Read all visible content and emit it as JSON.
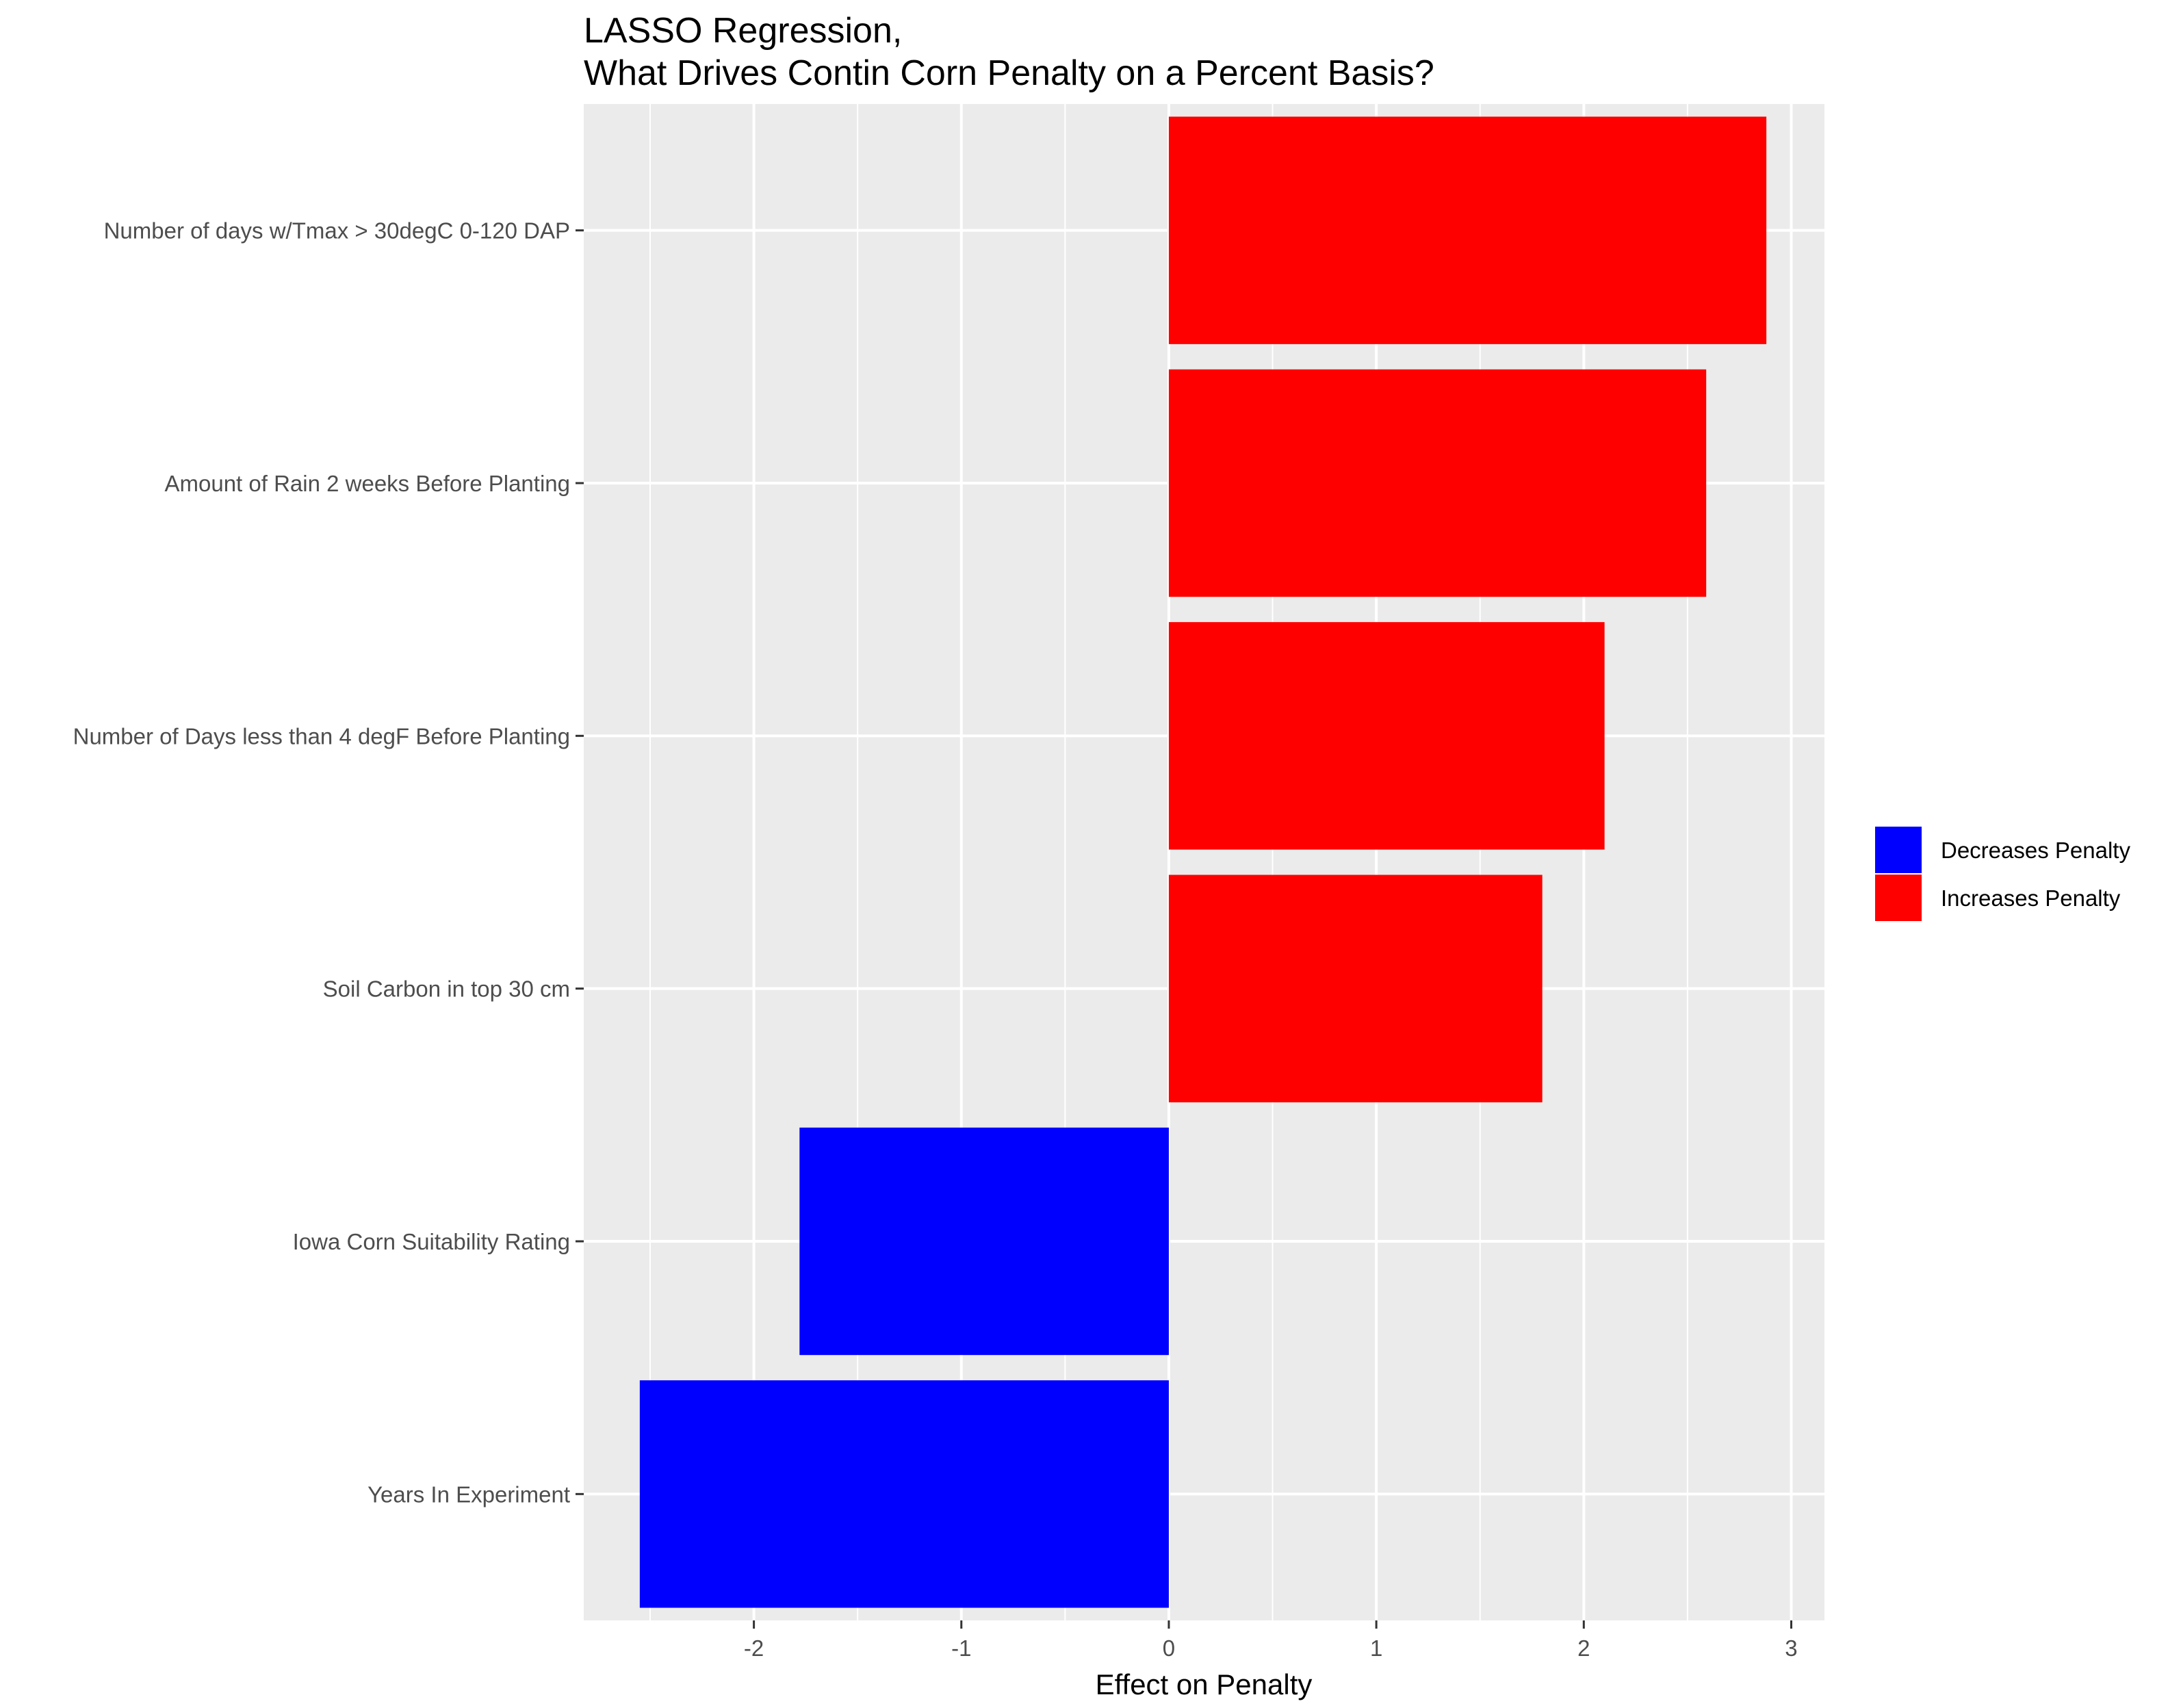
{
  "chart_data": {
    "type": "bar",
    "orientation": "horizontal",
    "title_lines": [
      "LASSO Regression,",
      "What Drives Contin Corn Penalty on a Percent Basis?"
    ],
    "xlabel": "Effect on Penalty",
    "ylabel": "",
    "xlim": [
      -2.82,
      3.16
    ],
    "x_ticks": [
      -2,
      -1,
      0,
      1,
      2,
      3
    ],
    "x_tick_labels": [
      "-2",
      "-1",
      "0",
      "1",
      "2",
      "3"
    ],
    "categories": [
      "Number of days w/Tmax > 30degC 0-120 DAP",
      "Amount of Rain 2 weeks Before Planting",
      "Number of Days less than 4 degF Before Planting",
      "Soil Carbon in top 30 cm",
      "Iowa Corn Suitability Rating",
      "Years In Experiment"
    ],
    "values": [
      2.88,
      2.59,
      2.1,
      1.8,
      -1.78,
      -2.55
    ],
    "groups": [
      "Increases Penalty",
      "Increases Penalty",
      "Increases Penalty",
      "Increases Penalty",
      "Decreases Penalty",
      "Decreases Penalty"
    ],
    "legend": [
      {
        "name": "Decreases Penalty",
        "color": "#0000ff"
      },
      {
        "name": "Increases Penalty",
        "color": "#ff0000"
      }
    ],
    "legend_position": "right",
    "grid": true,
    "panel_background": "#ebebeb"
  }
}
